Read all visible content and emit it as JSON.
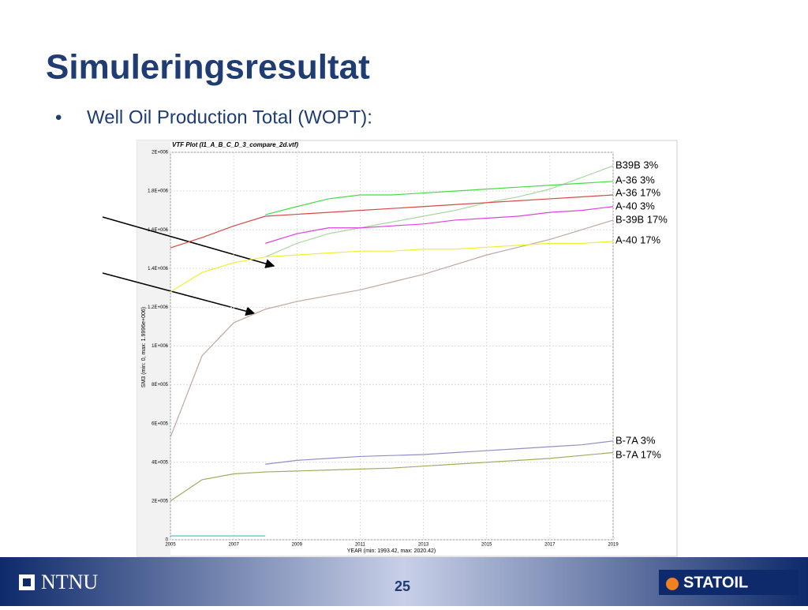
{
  "title": "Simuleringsresultat",
  "bullet": "Well Oil Production Total (WOPT):",
  "chart_data": {
    "type": "line",
    "title": "VTF Plot (I1_A_B_C_D_3_compare_2d.vtf)",
    "x_label": "YEAR (min: 1993.42, max: 2020.42)",
    "y_label": "SM3 (min: 0, max: 1.9996e+006)",
    "x": [
      2005,
      2006,
      2007,
      2008,
      2009,
      2010,
      2011,
      2012,
      2013,
      2014,
      2015,
      2016,
      2017,
      2018,
      2019
    ],
    "xlim": [
      2005,
      2019
    ],
    "xticks": [
      2005,
      2007,
      2009,
      2011,
      2013,
      2015,
      2017,
      2019
    ],
    "ylim": [
      0,
      2000000
    ],
    "yticks": [
      0,
      {
        "value": 200000,
        "label": "2E+005"
      },
      {
        "value": 400000,
        "label": "4E+005"
      },
      {
        "value": 600000,
        "label": "6E+005"
      },
      {
        "value": 800000,
        "label": "8E+005"
      },
      {
        "value": 1000000,
        "label": "1E+006"
      },
      {
        "value": 1200000,
        "label": "1.2E+006"
      },
      {
        "value": 1400000,
        "label": "1.4E+006"
      },
      {
        "value": 1600000,
        "label": "1.6E+006"
      },
      {
        "value": 1800000,
        "label": "1.8E+006"
      },
      {
        "value": 2000000,
        "label": "2E+006"
      }
    ],
    "grid": true,
    "series": [
      {
        "name": "B39B 3%",
        "color": "#a8d8a0",
        "values": [
          null,
          null,
          null,
          1460000,
          1530000,
          1580000,
          1610000,
          1640000,
          1670000,
          1700000,
          1740000,
          1770000,
          1810000,
          1870000,
          1930000
        ]
      },
      {
        "name": "A-36 3%",
        "color": "#44dd44",
        "values": [
          null,
          null,
          null,
          1678000,
          1720000,
          1760000,
          1780000,
          1780000,
          1790000,
          1800000,
          1810000,
          1820000,
          1830000,
          1840000,
          1850000
        ]
      },
      {
        "name": "A-36 17%",
        "color": "#d84848",
        "values": [
          1507000,
          1560000,
          1620000,
          1670000,
          1680000,
          1690000,
          1700000,
          1710000,
          1720000,
          1730000,
          1740000,
          1750000,
          1760000,
          1770000,
          1780000
        ]
      },
      {
        "name": "A-40 3%",
        "color": "#dd44dd",
        "values": [
          null,
          null,
          null,
          1530000,
          1580000,
          1610000,
          1610000,
          1620000,
          1630000,
          1650000,
          1660000,
          1670000,
          1690000,
          1700000,
          1720000
        ]
      },
      {
        "name": "B-39B 17%",
        "color": "#c0a8a0",
        "values": [
          530000,
          950000,
          1120000,
          1190000,
          1230000,
          1260000,
          1290000,
          1330000,
          1370000,
          1420000,
          1470000,
          1510000,
          1550000,
          1600000,
          1650000
        ]
      },
      {
        "name": "A-40 17%",
        "color": "#f0f030",
        "values": [
          1280000,
          1380000,
          1430000,
          1460000,
          1470000,
          1480000,
          1490000,
          1490000,
          1500000,
          1500000,
          1510000,
          1520000,
          1530000,
          1530000,
          1540000
        ]
      },
      {
        "name": "B-7A 3%",
        "color": "#9090c8",
        "values": [
          null,
          null,
          null,
          390000,
          410000,
          420000,
          430000,
          435000,
          440000,
          450000,
          460000,
          470000,
          480000,
          490000,
          510000
        ]
      },
      {
        "name": "B-7A 17%",
        "color": "#a8a860",
        "values": [
          200000,
          310000,
          340000,
          350000,
          355000,
          360000,
          365000,
          370000,
          380000,
          390000,
          400000,
          410000,
          420000,
          435000,
          450000
        ]
      },
      {
        "color": "#40c8d8",
        "values": [
          20000,
          20000,
          20000,
          20000,
          null,
          null,
          null,
          null,
          null,
          null,
          null,
          null,
          null,
          null,
          null
        ]
      }
    ]
  },
  "footer": {
    "logo": "NTNU",
    "page": "25",
    "brand": "STATOIL"
  }
}
